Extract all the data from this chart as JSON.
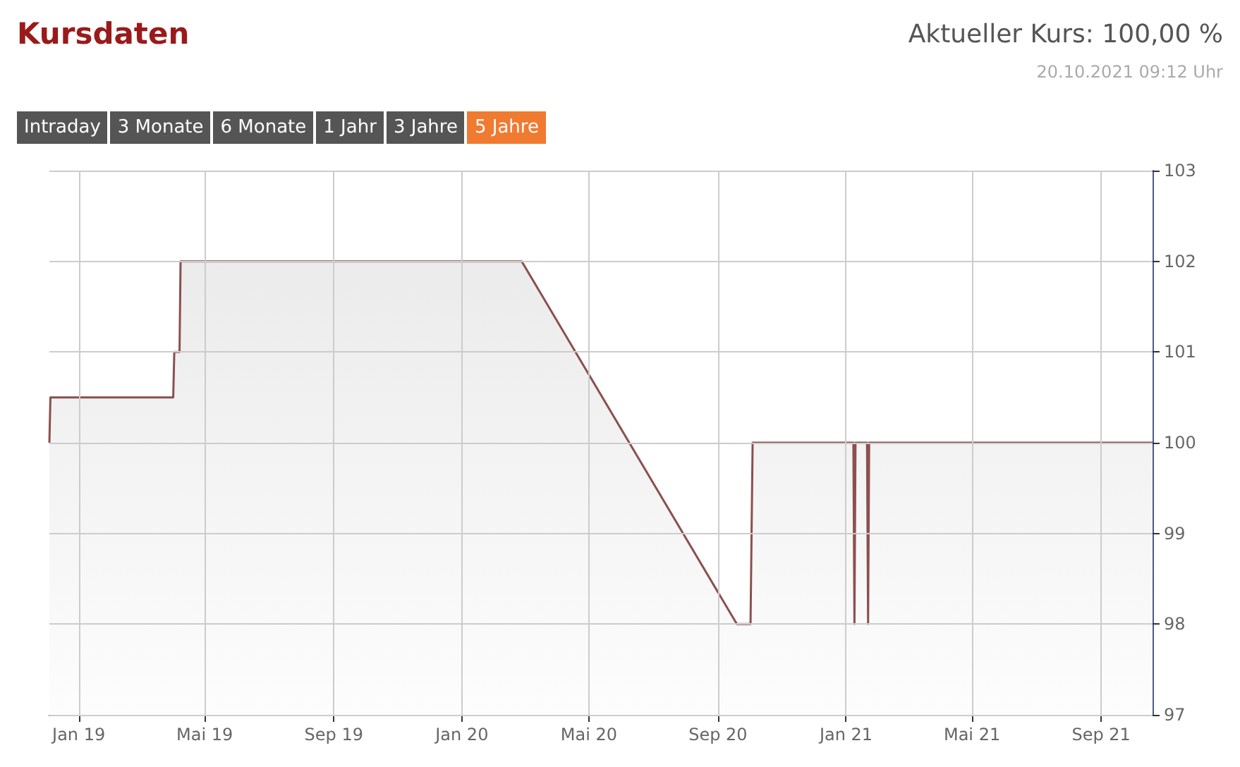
{
  "chart_data": {
    "type": "area",
    "title": "Kursdaten",
    "subtitle": "Aktueller Kurs: 100,00 %",
    "annotations": [
      "20.10.2021 09:12 Uhr",
      "Intraday",
      "3 Monate",
      "6 Monate",
      "1 Jahr",
      "3 Jahre",
      "5 Jahre"
    ],
    "x": [
      "2018-12-04",
      "2018-12-05",
      "2019-04-01",
      "2019-04-02",
      "2019-04-07",
      "2019-04-08",
      "2020-02-27",
      "2020-09-19",
      "2020-10-02",
      "2020-10-04",
      "2021-01-08",
      "2021-01-09",
      "2021-01-10",
      "2021-01-21",
      "2021-01-22",
      "2021-01-23",
      "2021-10-20"
    ],
    "series": [
      {
        "color": "#8c4f4f",
        "values": [
          100,
          100.5,
          100.5,
          101,
          101,
          102,
          102,
          98,
          98,
          100,
          100,
          98,
          100,
          100,
          98,
          100,
          100
        ]
      }
    ],
    "xlim": [
      "2018-12-04",
      "2021-10-20"
    ],
    "xticks": [
      {
        "value": "2019-01-01",
        "label": "Jan 19"
      },
      {
        "value": "2019-05-01",
        "label": "Mai 19"
      },
      {
        "value": "2019-09-01",
        "label": "Sep 19"
      },
      {
        "value": "2020-01-01",
        "label": "Jan 20"
      },
      {
        "value": "2020-05-01",
        "label": "Mai 20"
      },
      {
        "value": "2020-09-01",
        "label": "Sep 20"
      },
      {
        "value": "2021-01-01",
        "label": "Jan 21"
      },
      {
        "value": "2021-05-01",
        "label": "Mai 21"
      },
      {
        "value": "2021-09-01",
        "label": "Sep 21"
      }
    ],
    "ylim": [
      97,
      103
    ],
    "yticks": [
      97,
      98,
      99,
      100,
      101,
      102,
      103
    ],
    "grid": true,
    "marker": "none",
    "line_style": "solid"
  }
}
